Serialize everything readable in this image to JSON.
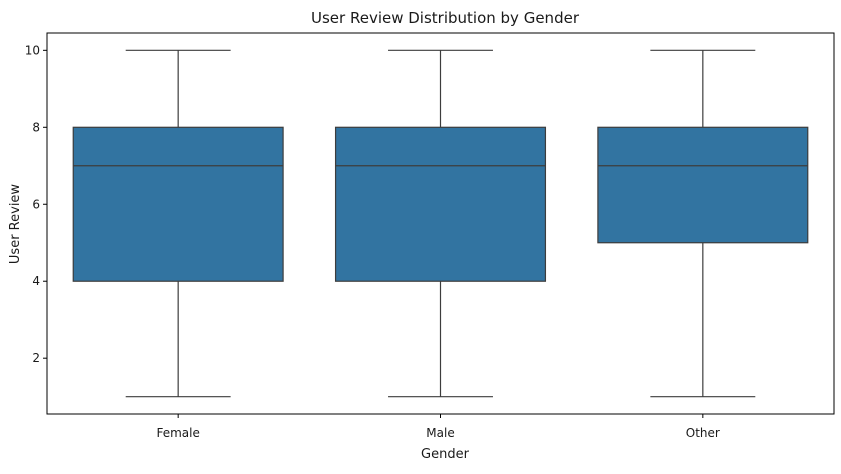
{
  "chart_data": {
    "type": "box",
    "title": "User Review Distribution by Gender",
    "xlabel": "Gender",
    "ylabel": "User Review",
    "categories": [
      "Female",
      "Male",
      "Other"
    ],
    "boxes": [
      {
        "category": "Female",
        "whisker_low": 1,
        "q1": 4,
        "median": 7,
        "q3": 8,
        "whisker_high": 10
      },
      {
        "category": "Male",
        "whisker_low": 1,
        "q1": 4,
        "median": 7,
        "q3": 8,
        "whisker_high": 10
      },
      {
        "category": "Other",
        "whisker_low": 1,
        "q1": 5,
        "median": 7,
        "q3": 8,
        "whisker_high": 10
      }
    ],
    "yticks": [
      2,
      4,
      6,
      8,
      10
    ],
    "ytick_labels": [
      "2",
      "4",
      "6",
      "8",
      "10"
    ],
    "ylim": [
      0.55,
      10.45
    ],
    "grid": false,
    "colors": {
      "box_fill": "#3274a1",
      "line": "#3d3d3d",
      "axis": "#000000"
    }
  }
}
